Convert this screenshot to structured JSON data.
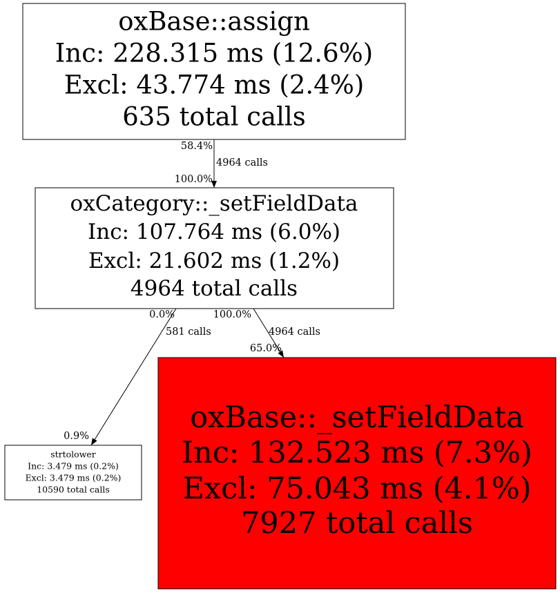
{
  "nodes": [
    {
      "lines": [
        "oxBase::assign",
        "Inc: 228.315 ms (12.6%)",
        "Excl: 43.774 ms (2.4%)",
        "635 total calls"
      ]
    },
    {
      "lines": [
        "oxCategory::_setFieldData",
        "Inc: 107.764 ms (6.0%)",
        "Excl: 21.602 ms (1.2%)",
        "4964 total calls"
      ]
    },
    {
      "lines": [
        "oxBase::_setFieldData",
        "Inc: 132.523 ms (7.3%)",
        "Excl: 75.043 ms (4.1%)",
        "7927 total calls"
      ]
    },
    {
      "lines": [
        "strtolower",
        "Inc: 3.479 ms (0.2%)",
        "Excl: 3.479 ms (0.2%)",
        "10590 total calls"
      ]
    }
  ],
  "edges": [
    {
      "tail_label": "58.4%",
      "label": "4964 calls",
      "head_label": "100.0%"
    },
    {
      "tail_label": "0.0%",
      "label": "581 calls",
      "head_label": "0.9%"
    },
    {
      "tail_label": "100.0%",
      "label": "4964 calls",
      "head_label": "65.0%"
    }
  ]
}
